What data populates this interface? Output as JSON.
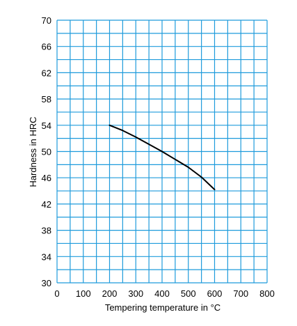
{
  "colors": {
    "grid": "#1e9bdc",
    "curve": "#000000",
    "text": "#000000",
    "background": "#ffffff"
  },
  "chart_data": {
    "type": "line",
    "title": "",
    "xlabel": "Tempering temperature in °C",
    "ylabel": "Hardness in HRC",
    "xlim": [
      0,
      800
    ],
    "ylim": [
      30,
      70
    ],
    "x_ticks": [
      0,
      100,
      200,
      300,
      400,
      500,
      600,
      700,
      800
    ],
    "y_ticks": [
      30,
      34,
      38,
      42,
      46,
      50,
      54,
      58,
      62,
      66,
      70
    ],
    "x_minor_step": 50,
    "y_minor_step": 2,
    "grid": true,
    "legend": "none",
    "series": [
      {
        "x": [
          200,
          250,
          300,
          350,
          400,
          450,
          500,
          550,
          600
        ],
        "y": [
          54,
          53.2,
          52.2,
          51.1,
          50.0,
          48.8,
          47.6,
          46.1,
          44.2
        ]
      }
    ]
  }
}
